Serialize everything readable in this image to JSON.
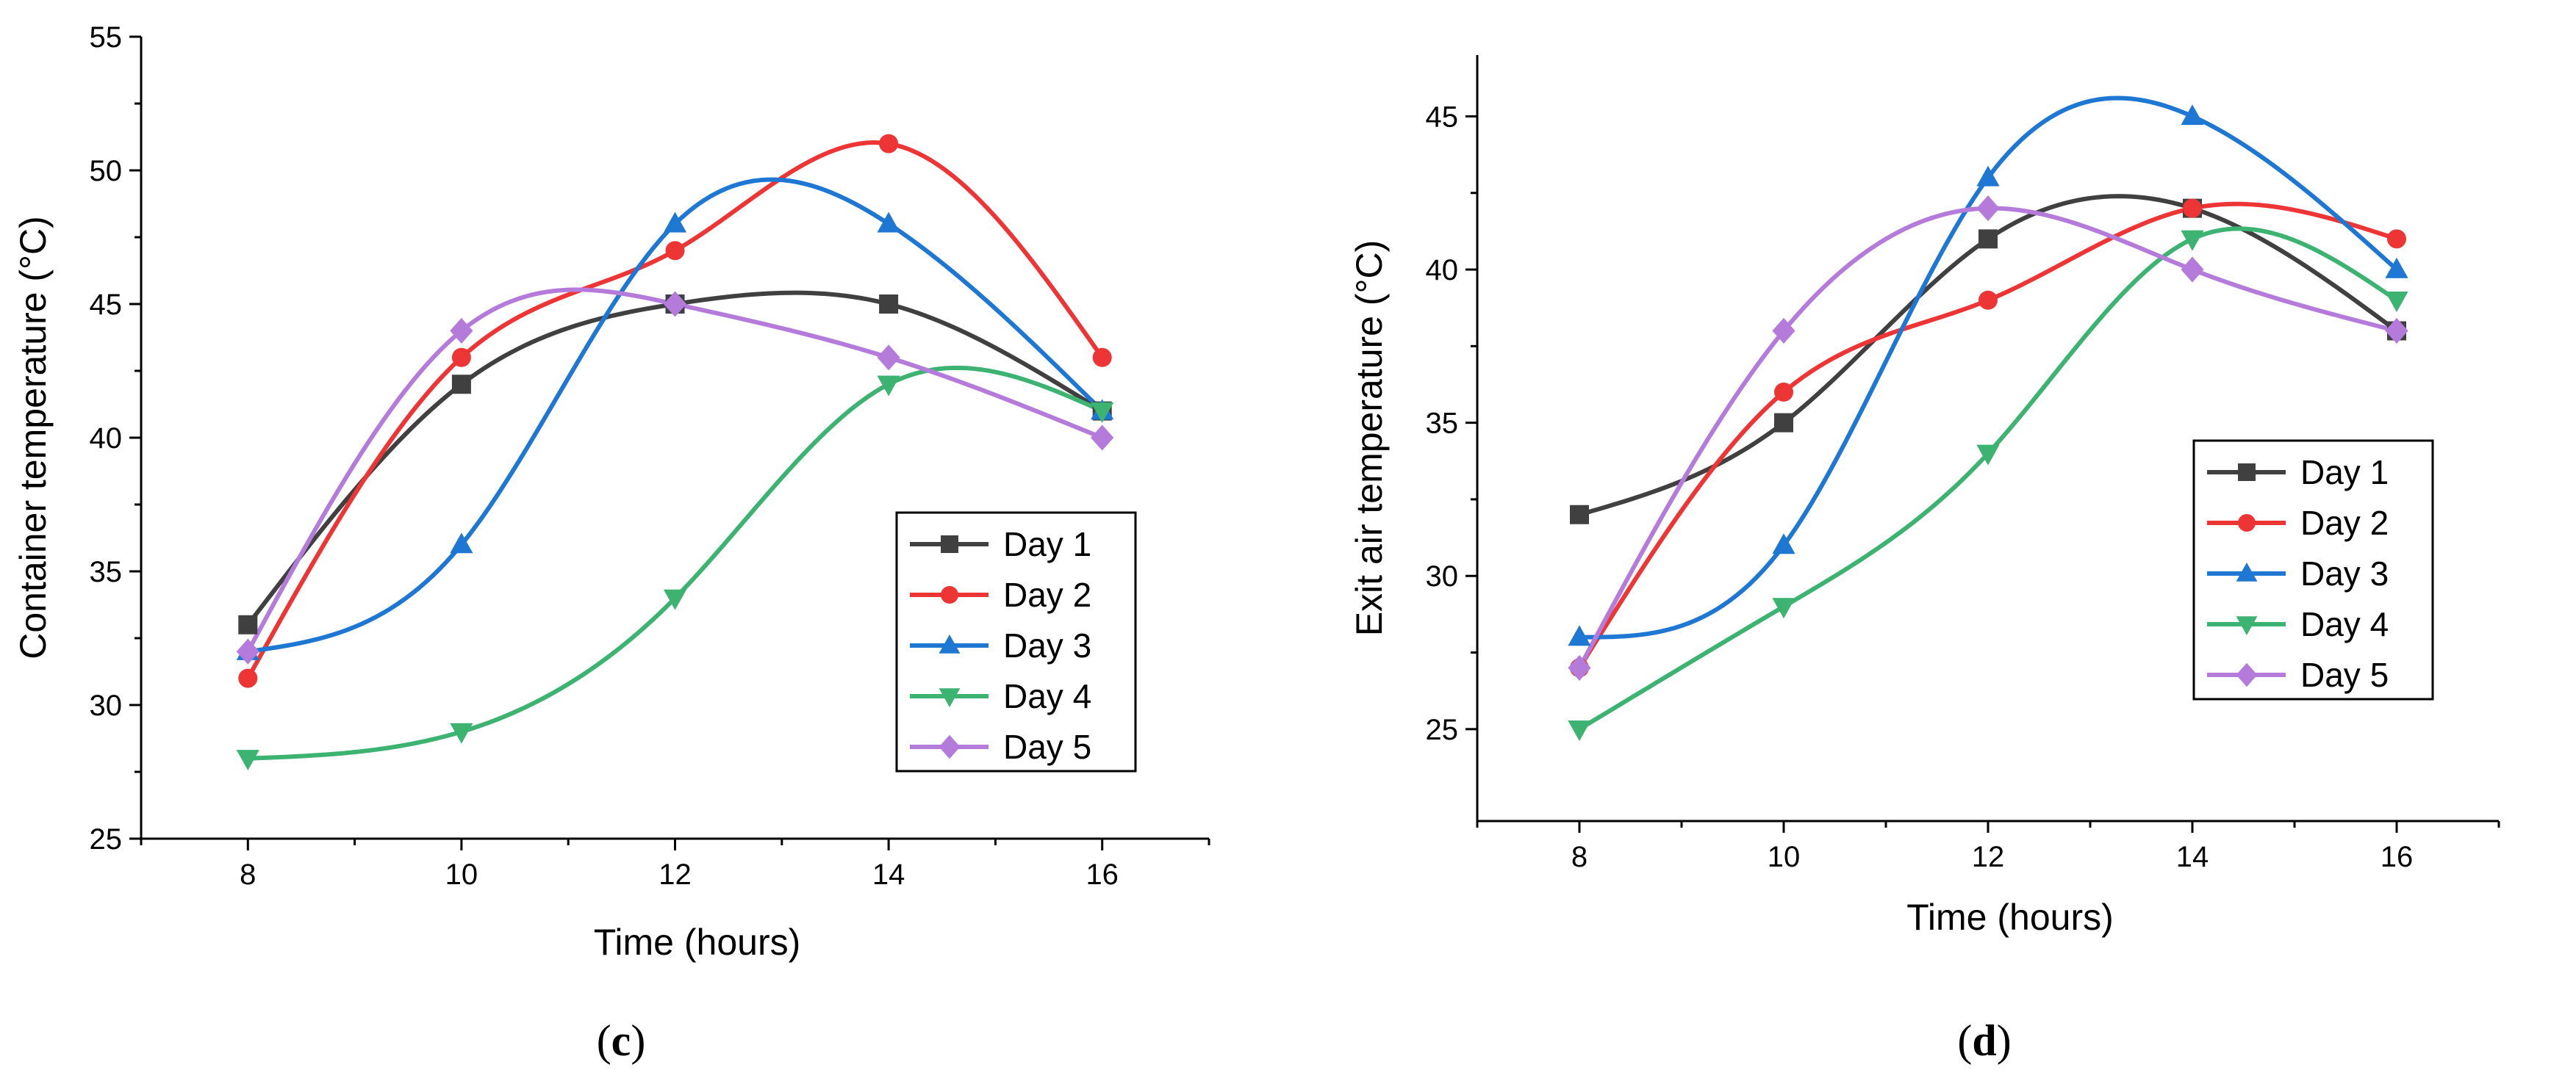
{
  "chart_data": [
    {
      "type": "line",
      "panel_label": "c",
      "xlabel": "Time (hours)",
      "ylabel": "Container temperature (°C)",
      "xlim": [
        7,
        17
      ],
      "ylim": [
        25,
        55
      ],
      "x_ticks": [
        8,
        10,
        12,
        14,
        16
      ],
      "y_ticks": [
        25,
        30,
        35,
        40,
        45,
        50,
        55
      ],
      "grid": false,
      "legend_position": "lower-right",
      "x": [
        8,
        10,
        12,
        14,
        16
      ],
      "series": [
        {
          "name": "Day 1",
          "values": [
            33,
            42,
            45,
            45,
            41
          ],
          "color": "#404040",
          "marker": "square"
        },
        {
          "name": "Day 2",
          "values": [
            31,
            43,
            47,
            51,
            43
          ],
          "color": "#ee3535",
          "marker": "circle"
        },
        {
          "name": "Day 3",
          "values": [
            32,
            36,
            48,
            48,
            41
          ],
          "color": "#1f77d4",
          "marker": "triangle-up"
        },
        {
          "name": "Day 4",
          "values": [
            28,
            29,
            34,
            42,
            41
          ],
          "color": "#3cb371",
          "marker": "triangle-down"
        },
        {
          "name": "Day 5",
          "values": [
            32,
            44,
            45,
            43,
            40
          ],
          "color": "#b57bdb",
          "marker": "diamond"
        }
      ]
    },
    {
      "type": "line",
      "panel_label": "d",
      "xlabel": "Time (hours)",
      "ylabel": "Exit air temperature (°C)",
      "xlim": [
        7,
        17
      ],
      "ylim": [
        22,
        47
      ],
      "x_ticks": [
        8,
        10,
        12,
        14,
        16
      ],
      "y_ticks": [
        25,
        30,
        35,
        40,
        45
      ],
      "grid": false,
      "legend_position": "center-right",
      "x": [
        8,
        10,
        12,
        14,
        16
      ],
      "series": [
        {
          "name": "Day 1",
          "values": [
            32,
            35,
            41,
            42,
            38
          ],
          "color": "#404040",
          "marker": "square"
        },
        {
          "name": "Day 2",
          "values": [
            27,
            36,
            39,
            42,
            41
          ],
          "color": "#ee3535",
          "marker": "circle"
        },
        {
          "name": "Day 3",
          "values": [
            28,
            31,
            43,
            45,
            40
          ],
          "color": "#1f77d4",
          "marker": "triangle-up"
        },
        {
          "name": "Day 4",
          "values": [
            25,
            29,
            34,
            41,
            39
          ],
          "color": "#3cb371",
          "marker": "triangle-down"
        },
        {
          "name": "Day 5",
          "values": [
            27,
            38,
            42,
            40,
            38
          ],
          "color": "#b57bdb",
          "marker": "diamond"
        }
      ]
    }
  ]
}
